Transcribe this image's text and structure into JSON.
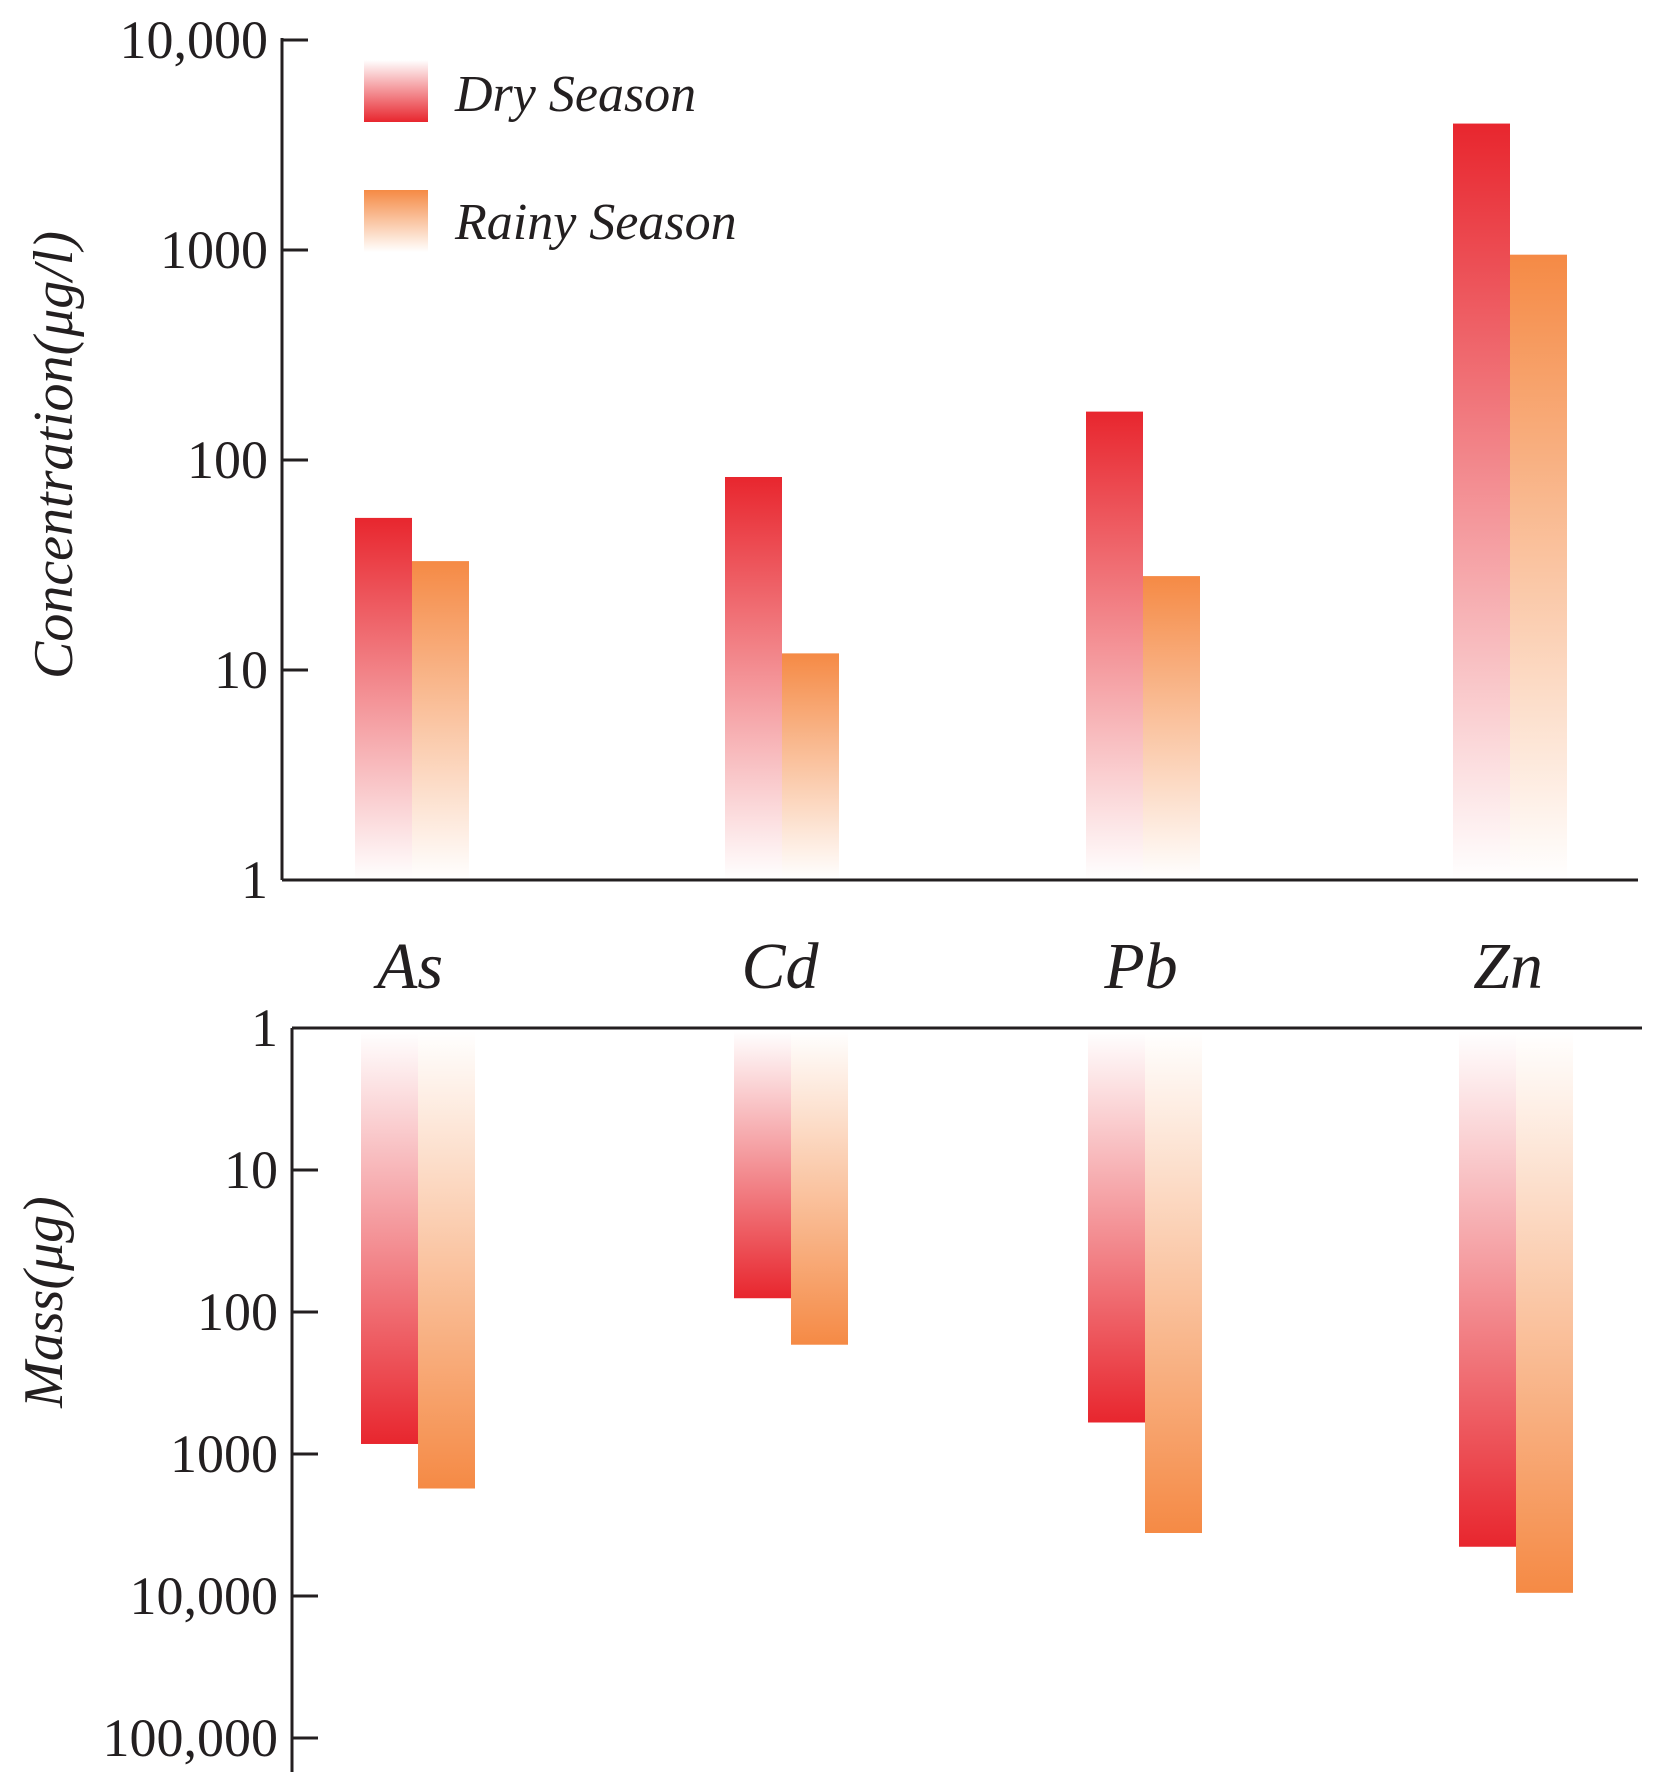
{
  "chart_data": [
    {
      "type": "bar",
      "scale": "log",
      "ylabel": "Concentration(μg/l)",
      "categories": [
        "As",
        "Cd",
        "Pb",
        "Zn"
      ],
      "ticks": [
        {
          "value": 1,
          "label": "1"
        },
        {
          "value": 10,
          "label": "10"
        },
        {
          "value": 100,
          "label": "100"
        },
        {
          "value": 1000,
          "label": "1000"
        },
        {
          "value": 10000,
          "label": "10,000"
        }
      ],
      "ylim": [
        1,
        10000
      ],
      "series": [
        {
          "name": "Dry Season",
          "values": [
            53,
            83,
            170,
            4000
          ]
        },
        {
          "name": "Rainy Season",
          "values": [
            33,
            12,
            28,
            950
          ]
        }
      ]
    },
    {
      "type": "bar",
      "scale": "log",
      "direction": "downward",
      "ylabel": "Mass(μg)",
      "categories": [
        "As",
        "Cd",
        "Pb",
        "Zn"
      ],
      "ticks": [
        {
          "value": 1,
          "label": "1"
        },
        {
          "value": 10,
          "label": "10"
        },
        {
          "value": 100,
          "label": "100"
        },
        {
          "value": 1000,
          "label": "1000"
        },
        {
          "value": 10000,
          "label": "10,000"
        },
        {
          "value": 100000,
          "label": "100,000"
        }
      ],
      "ylim": [
        1,
        100000
      ],
      "series": [
        {
          "name": "Dry Season",
          "values": [
            850,
            80,
            600,
            4500
          ]
        },
        {
          "name": "Rainy Season",
          "values": [
            1750,
            170,
            3600,
            9500
          ]
        }
      ]
    }
  ],
  "legend": {
    "position": "top-left",
    "items": [
      {
        "label": "Dry Season",
        "color": "#e8262e"
      },
      {
        "label": "Rainy Season",
        "color": "#f58a45"
      }
    ]
  },
  "colors": {
    "dry": "#e8262e",
    "rainy": "#f58a45",
    "axis": "#231f20"
  }
}
